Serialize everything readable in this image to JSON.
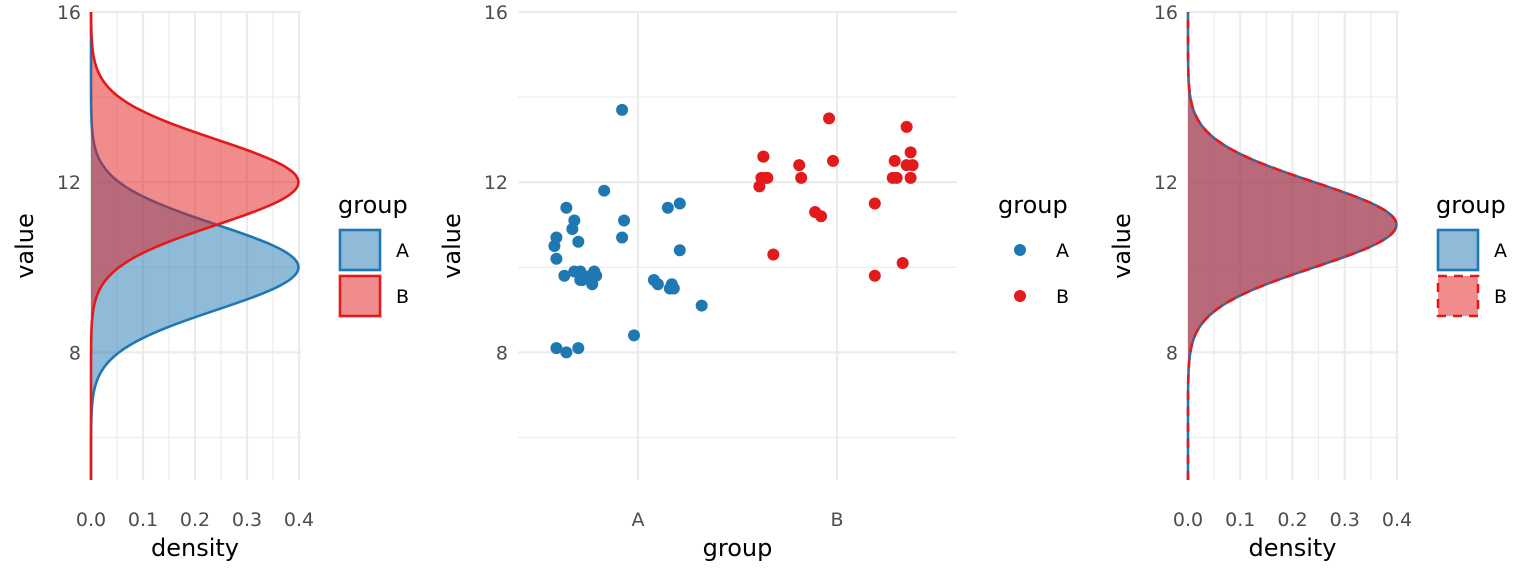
{
  "colors": {
    "A": "#1f78b4",
    "B": "#e31a1c",
    "grid": "#ebebeb",
    "tick_text": "#4d4d4d"
  },
  "legend": {
    "title": "group",
    "entries": [
      "A",
      "B"
    ]
  },
  "chart_data": [
    {
      "type": "area",
      "orientation": "horizontal-density",
      "xlabel": "density",
      "ylabel": "value",
      "xlim": [
        0,
        0.4
      ],
      "ylim": [
        5,
        16
      ],
      "x_ticks": [
        "0.0",
        "0.1",
        "0.2",
        "0.3",
        "0.4"
      ],
      "y_ticks": [
        "8",
        "12",
        "16"
      ],
      "grid": true,
      "legend_position": "right",
      "series": [
        {
          "name": "A",
          "mean": 10,
          "sd": 1
        },
        {
          "name": "B",
          "mean": 12,
          "sd": 1
        }
      ]
    },
    {
      "type": "scatter",
      "xlabel": "group",
      "ylabel": "value",
      "categories": [
        "A",
        "B"
      ],
      "ylim": [
        5,
        16
      ],
      "y_ticks": [
        "8",
        "12",
        "16"
      ],
      "grid": true,
      "legend_position": "right",
      "series": [
        {
          "name": "A",
          "x": [
            -0.41,
            -0.36,
            -0.3,
            -0.37,
            -0.24,
            -0.21,
            -0.41,
            -0.28,
            -0.36,
            -0.22,
            -0.23,
            -0.29,
            -0.17,
            -0.08,
            -0.07,
            -0.08,
            -0.42,
            -0.33,
            -0.32,
            -0.02,
            0.08,
            0.1,
            0.16,
            0.18,
            0.21,
            0.21,
            0.15,
            0.17,
            0.32,
            -0.32,
            -0.29,
            -0.3,
            -0.41
          ],
          "y": [
            8.1,
            8.0,
            8.1,
            9.8,
            9.8,
            9.8,
            10.2,
            9.7,
            11.4,
            9.9,
            9.6,
            9.7,
            11.8,
            13.7,
            11.1,
            10.7,
            10.5,
            10.9,
            11.1,
            8.4,
            9.7,
            9.6,
            9.5,
            9.5,
            10.4,
            11.5,
            11.4,
            9.6,
            9.1,
            9.9,
            9.9,
            10.6,
            10.7
          ]
        },
        {
          "name": "B",
          "x": [
            -0.39,
            -0.38,
            -0.37,
            -0.37,
            -0.35,
            -0.36,
            -0.19,
            -0.18,
            -0.32,
            -0.11,
            -0.08,
            -0.04,
            -0.02,
            0.19,
            0.28,
            0.29,
            0.3,
            0.35,
            0.35,
            0.37,
            0.37,
            0.38,
            0.19,
            0.33
          ],
          "y": [
            11.9,
            12.1,
            12.6,
            12.6,
            12.1,
            12.1,
            12.4,
            12.1,
            10.3,
            11.3,
            11.2,
            13.5,
            12.5,
            11.5,
            12.1,
            12.5,
            12.1,
            12.4,
            13.3,
            12.7,
            12.1,
            12.4,
            9.8,
            10.1
          ]
        }
      ]
    },
    {
      "type": "area",
      "orientation": "horizontal-density",
      "xlabel": "density",
      "ylabel": "value",
      "xlim": [
        0,
        0.4
      ],
      "ylim": [
        5,
        16
      ],
      "x_ticks": [
        "0.0",
        "0.1",
        "0.2",
        "0.3",
        "0.4"
      ],
      "y_ticks": [
        "8",
        "12",
        "16"
      ],
      "grid": true,
      "legend_position": "right",
      "series": [
        {
          "name": "A",
          "mean": 11,
          "sd": 1
        },
        {
          "name": "B",
          "mean": 11,
          "sd": 1,
          "line_style": "dashed"
        }
      ]
    }
  ]
}
